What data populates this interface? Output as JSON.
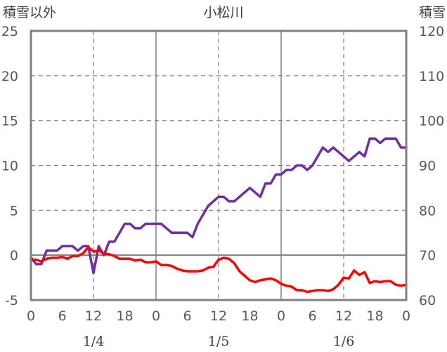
{
  "chart_data": {
    "type": "line",
    "title": "小松川",
    "left_axis_label": "積雪以外",
    "right_axis_label": "積雪",
    "left_axis": {
      "min": -5,
      "max": 25,
      "ticks": [
        25,
        20,
        15,
        10,
        5,
        0,
        -5
      ]
    },
    "right_axis": {
      "min": 60,
      "max": 120,
      "ticks": [
        120,
        110,
        100,
        90,
        80,
        70,
        60
      ]
    },
    "x_axis": {
      "min": 0,
      "max": 72,
      "tick_labels": [
        "0",
        "6",
        "12",
        "18",
        "0",
        "6",
        "12",
        "18",
        "0",
        "6",
        "12",
        "18",
        "0"
      ],
      "date_labels": [
        {
          "label": "1/4",
          "x": 12
        },
        {
          "label": "1/5",
          "x": 36
        },
        {
          "label": "1/6",
          "x": 60
        }
      ],
      "day_boundaries": [
        24,
        48
      ],
      "noon_lines": [
        12,
        36,
        60
      ]
    },
    "grid": true,
    "series": [
      {
        "axis": "right",
        "color": "#7030a0",
        "points": [
          [
            0,
            69.5
          ],
          [
            1,
            68
          ],
          [
            2,
            68
          ],
          [
            3,
            71
          ],
          [
            5,
            71
          ],
          [
            6,
            72
          ],
          [
            8,
            72
          ],
          [
            9,
            71
          ],
          [
            10,
            72
          ],
          [
            11,
            72
          ],
          [
            12,
            66
          ],
          [
            13,
            72
          ],
          [
            14,
            70
          ],
          [
            15,
            73
          ],
          [
            16,
            73
          ],
          [
            17,
            75
          ],
          [
            18,
            77
          ],
          [
            19,
            77
          ],
          [
            20,
            76
          ],
          [
            21,
            76
          ],
          [
            22,
            77
          ],
          [
            25,
            77
          ],
          [
            26,
            76
          ],
          [
            27,
            75
          ],
          [
            30,
            75
          ],
          [
            31,
            74
          ],
          [
            32,
            77
          ],
          [
            33,
            79
          ],
          [
            34,
            81
          ],
          [
            35,
            82
          ],
          [
            36,
            83
          ],
          [
            37,
            83
          ],
          [
            38,
            82
          ],
          [
            39,
            82
          ],
          [
            41,
            84
          ],
          [
            42,
            85
          ],
          [
            43,
            84
          ],
          [
            44,
            83
          ],
          [
            45,
            86
          ],
          [
            46,
            86
          ],
          [
            47,
            88
          ],
          [
            48,
            88
          ],
          [
            49,
            89
          ],
          [
            50,
            89
          ],
          [
            51,
            90
          ],
          [
            52,
            90
          ],
          [
            53,
            89
          ],
          [
            54,
            90
          ],
          [
            55,
            92
          ],
          [
            56,
            94
          ],
          [
            57,
            93
          ],
          [
            58,
            94
          ],
          [
            59,
            93
          ],
          [
            60,
            92
          ],
          [
            61,
            91
          ],
          [
            62,
            92
          ],
          [
            63,
            93
          ],
          [
            64,
            92
          ],
          [
            65,
            96
          ],
          [
            66,
            96
          ],
          [
            67,
            95
          ],
          [
            68,
            96
          ],
          [
            70,
            96
          ],
          [
            71,
            94
          ],
          [
            72,
            94
          ]
        ]
      },
      {
        "axis": "left",
        "color": "#ff0000",
        "points": [
          [
            0,
            -0.5
          ],
          [
            1,
            -0.5
          ],
          [
            2,
            -0.7
          ],
          [
            3,
            -0.4
          ],
          [
            4,
            -0.3
          ],
          [
            5,
            -0.3
          ],
          [
            6,
            -0.2
          ],
          [
            7,
            -0.4
          ],
          [
            8,
            -0.1
          ],
          [
            9,
            -0.1
          ],
          [
            10,
            0.2
          ],
          [
            11,
            0.9
          ],
          [
            12,
            0.4
          ],
          [
            13,
            0.5
          ],
          [
            14,
            0.2
          ],
          [
            15,
            0.1
          ],
          [
            16,
            -0.1
          ],
          [
            17,
            -0.4
          ],
          [
            18,
            -0.4
          ],
          [
            19,
            -0.4
          ],
          [
            20,
            -0.6
          ],
          [
            21,
            -0.5
          ],
          [
            22,
            -0.8
          ],
          [
            23,
            -0.8
          ],
          [
            24,
            -0.7
          ],
          [
            25,
            -1.1
          ],
          [
            26,
            -1.1
          ],
          [
            27,
            -1.2
          ],
          [
            28,
            -1.5
          ],
          [
            29,
            -1.7
          ],
          [
            30,
            -1.8
          ],
          [
            31,
            -1.8
          ],
          [
            32,
            -1.8
          ],
          [
            33,
            -1.7
          ],
          [
            34,
            -1.4
          ],
          [
            35,
            -1.3
          ],
          [
            36,
            -0.5
          ],
          [
            37,
            -0.3
          ],
          [
            38,
            -0.4
          ],
          [
            39,
            -0.9
          ],
          [
            40,
            -1.8
          ],
          [
            41,
            -2.3
          ],
          [
            42,
            -2.8
          ],
          [
            43,
            -3.0
          ],
          [
            44,
            -2.8
          ],
          [
            45,
            -2.7
          ],
          [
            46,
            -2.6
          ],
          [
            47,
            -2.8
          ],
          [
            48,
            -3.2
          ],
          [
            49,
            -3.4
          ],
          [
            50,
            -3.5
          ],
          [
            51,
            -3.9
          ],
          [
            52,
            -3.9
          ],
          [
            53,
            -4.1
          ],
          [
            54,
            -4.0
          ],
          [
            55,
            -3.9
          ],
          [
            56,
            -3.9
          ],
          [
            57,
            -4.0
          ],
          [
            58,
            -3.8
          ],
          [
            59,
            -3.3
          ],
          [
            60,
            -2.5
          ],
          [
            61,
            -2.6
          ],
          [
            62,
            -1.7
          ],
          [
            63,
            -2.2
          ],
          [
            64,
            -1.9
          ],
          [
            65,
            -3.1
          ],
          [
            66,
            -2.9
          ],
          [
            67,
            -3.0
          ],
          [
            68,
            -2.9
          ],
          [
            69,
            -2.9
          ],
          [
            70,
            -3.3
          ],
          [
            71,
            -3.4
          ],
          [
            72,
            -3.3
          ]
        ]
      }
    ]
  }
}
